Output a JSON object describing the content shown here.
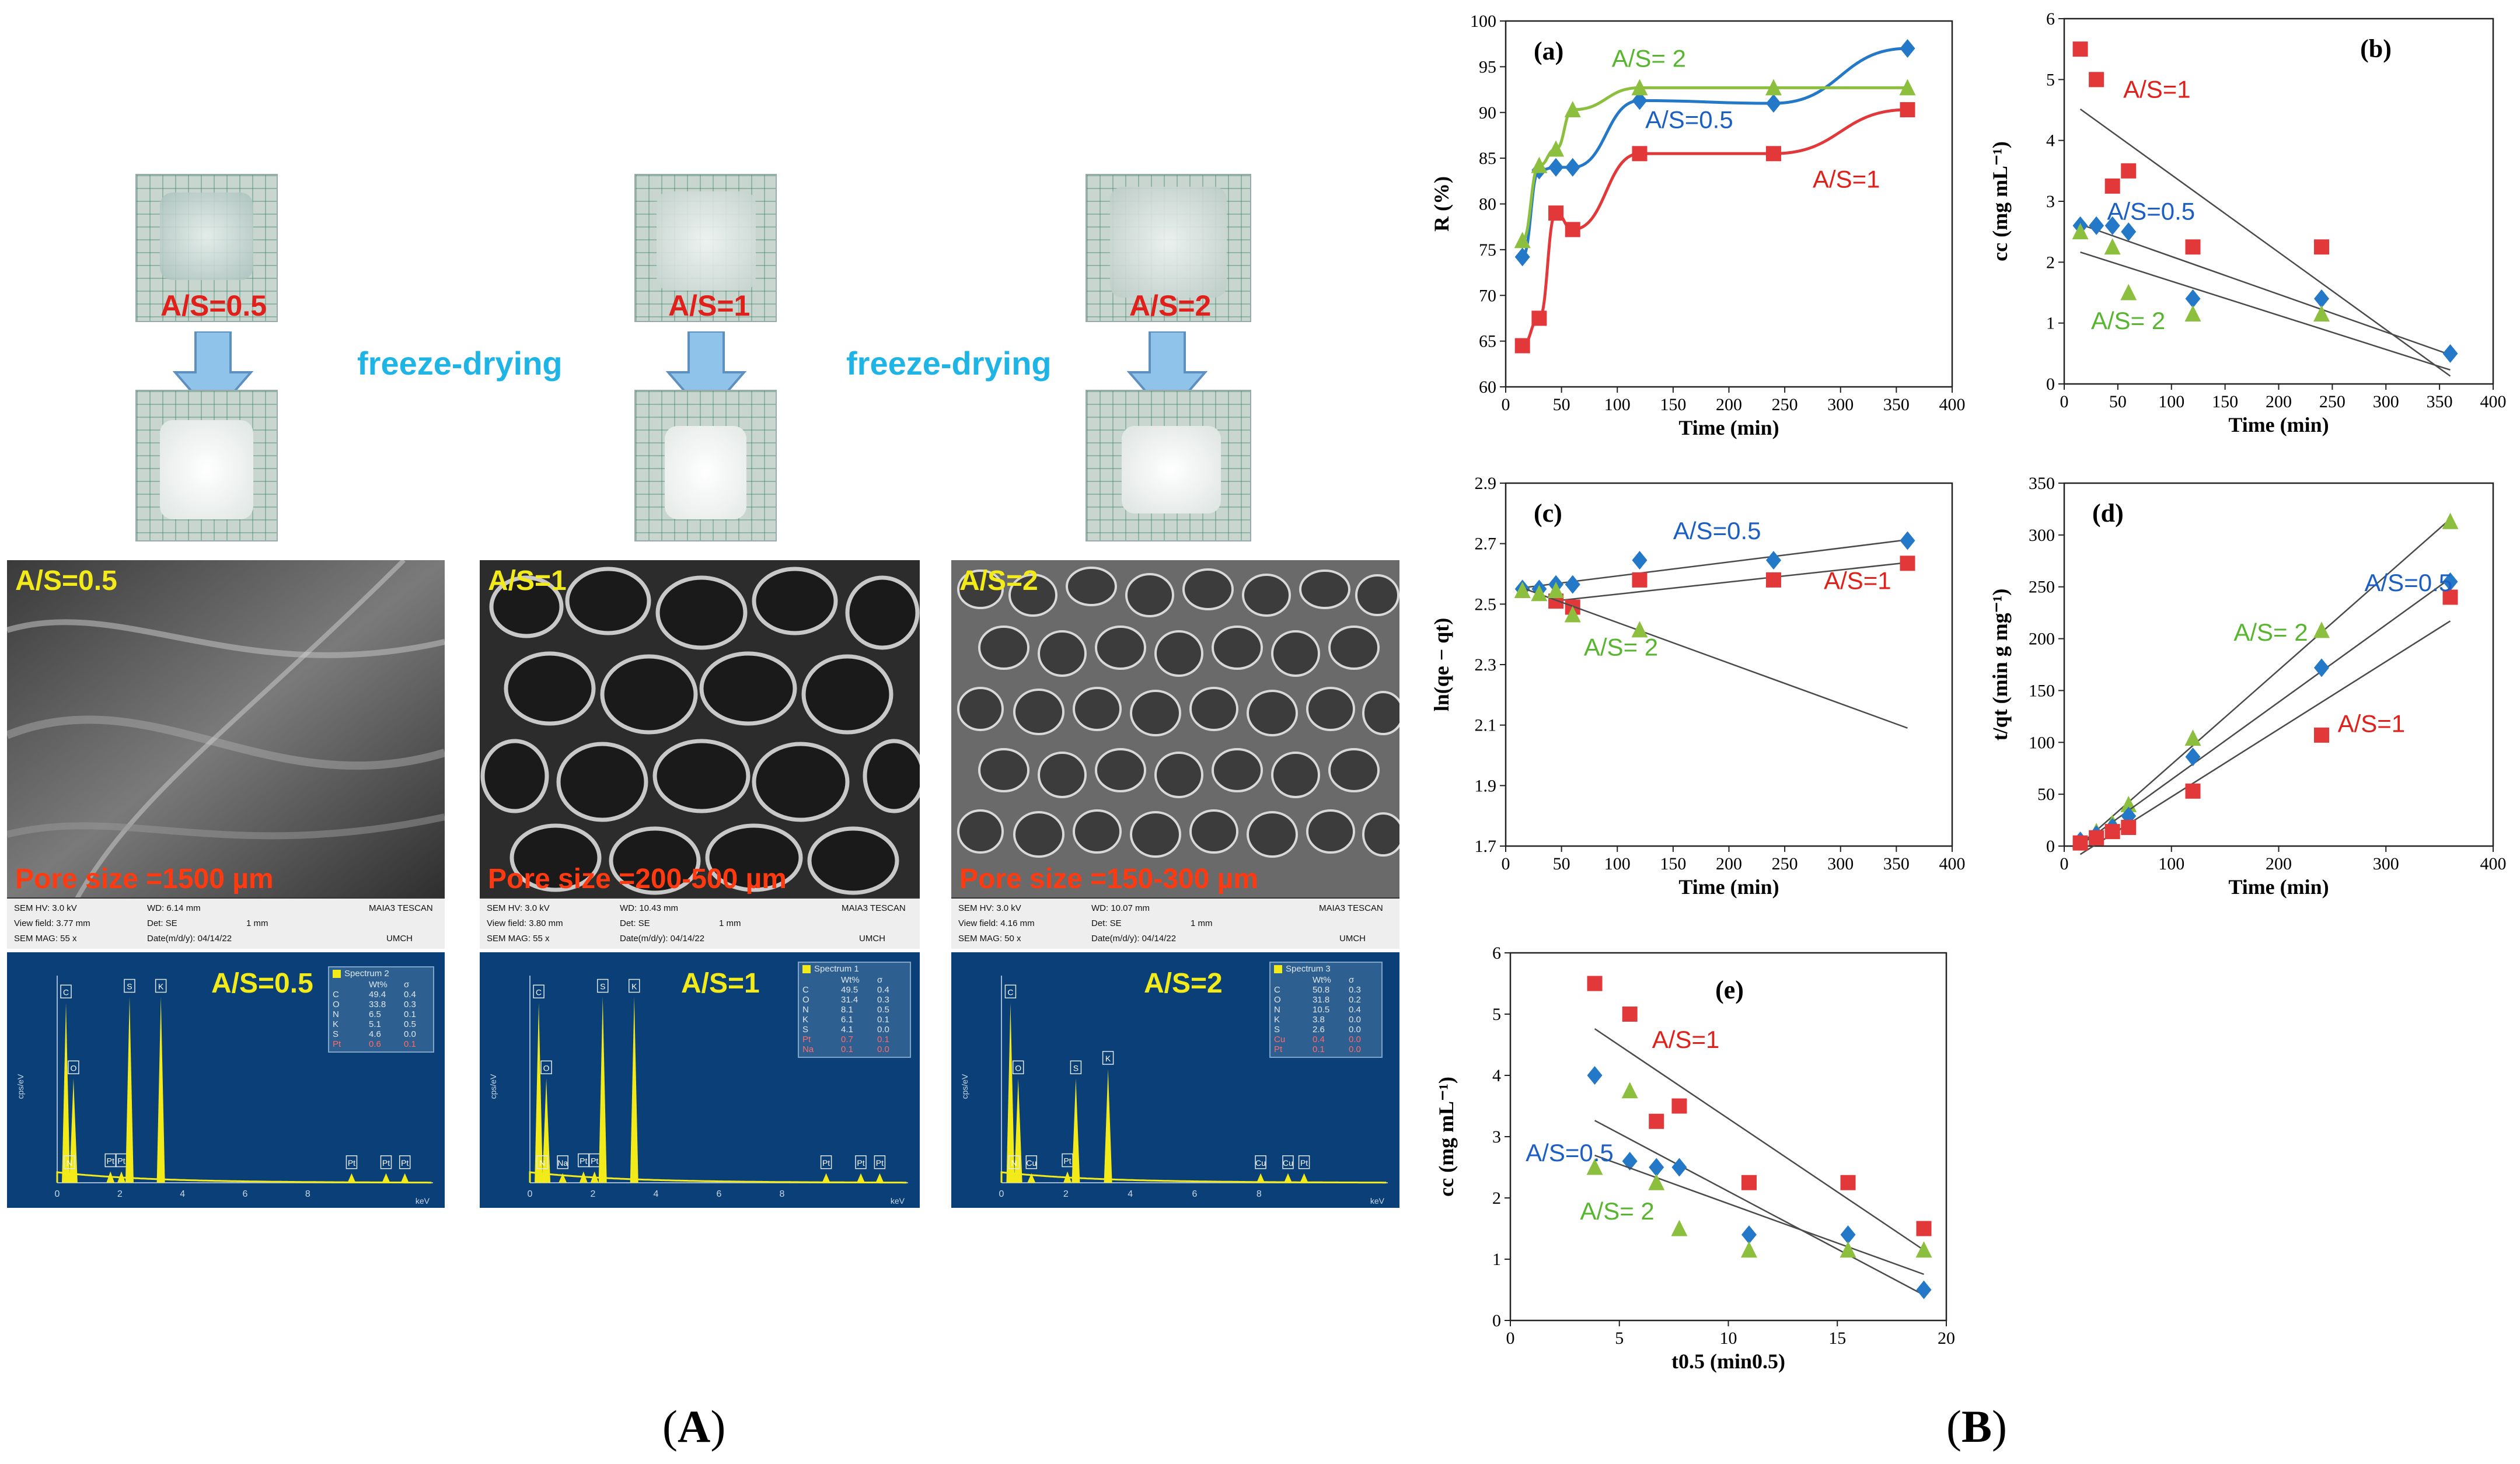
{
  "panel_A": {
    "caption_open": "(",
    "caption_letter": "A",
    "caption_close": ")",
    "freeze_label": "freeze-drying",
    "samples": [
      {
        "ratio": "A/S=0.5",
        "sem": {
          "label": "A/S=0.5",
          "pore": "Pore size =1500 µm",
          "info": {
            "hv": "SEM HV: 3.0 kV",
            "vf": "View field: 3.77 mm",
            "mag": "SEM MAG: 55 x",
            "wd": "WD: 6.14 mm",
            "det": "Det: SE",
            "date": "Date(m/d/y): 04/14/22",
            "scale": "1 mm",
            "brand": "MAIA3 TESCAN",
            "inst": "UMCH"
          }
        },
        "eds": {
          "label": "A/S=0.5",
          "spectrum": "Spectrum 2",
          "header": [
            "",
            "Wt%",
            "σ"
          ],
          "rows": [
            [
              "C",
              "49.4",
              "0.4"
            ],
            [
              "O",
              "33.8",
              "0.3"
            ],
            [
              "N",
              "6.5",
              "0.1"
            ],
            [
              "K",
              "5.1",
              "0.5"
            ],
            [
              "S",
              "4.6",
              "0.0"
            ],
            [
              "Pt",
              "0.6",
              "0.1"
            ]
          ],
          "peaks": [
            "C",
            "O",
            "N",
            "Pt",
            "Pt",
            "S",
            "K",
            "Pt",
            "Pt",
            "Pt"
          ],
          "yaxis": "cps/eV",
          "xaxis": "keV",
          "xticks": [
            "0",
            "2",
            "4",
            "6",
            "8"
          ]
        }
      },
      {
        "ratio": "A/S=1",
        "sem": {
          "label": "A/S=1",
          "pore": "Pore size =200-500 µm",
          "info": {
            "hv": "SEM HV: 3.0 kV",
            "vf": "View field: 3.80 mm",
            "mag": "SEM MAG: 55 x",
            "wd": "WD: 10.43 mm",
            "det": "Det: SE",
            "date": "Date(m/d/y): 04/14/22",
            "scale": "1 mm",
            "brand": "MAIA3 TESCAN",
            "inst": "UMCH"
          }
        },
        "eds": {
          "label": "A/S=1",
          "spectrum": "Spectrum 1",
          "header": [
            "",
            "Wt%",
            "σ"
          ],
          "rows": [
            [
              "C",
              "49.5",
              "0.4"
            ],
            [
              "O",
              "31.4",
              "0.3"
            ],
            [
              "N",
              "8.1",
              "0.5"
            ],
            [
              "K",
              "6.1",
              "0.1"
            ],
            [
              "S",
              "4.1",
              "0.0"
            ],
            [
              "Pt",
              "0.7",
              "0.1"
            ],
            [
              "Na",
              "0.1",
              "0.0"
            ]
          ],
          "peaks": [
            "C",
            "O",
            "N",
            "Na",
            "Pt",
            "Pt",
            "S",
            "K",
            "Pt",
            "Pt",
            "Pt"
          ],
          "yaxis": "cps/eV",
          "xaxis": "keV",
          "xticks": [
            "0",
            "2",
            "4",
            "6",
            "8"
          ]
        }
      },
      {
        "ratio": "A/S=2",
        "sem": {
          "label": "A/S=2",
          "pore": "Pore size =150-300 µm",
          "info": {
            "hv": "SEM HV: 3.0 kV",
            "vf": "View field: 4.16 mm",
            "mag": "SEM MAG: 50 x",
            "wd": "WD: 10.07 mm",
            "det": "Det: SE",
            "date": "Date(m/d/y): 04/14/22",
            "scale": "1 mm",
            "brand": "MAIA3 TESCAN",
            "inst": "UMCH"
          }
        },
        "eds": {
          "label": "A/S=2",
          "spectrum": "Spectrum 3",
          "header": [
            "",
            "Wt%",
            "σ"
          ],
          "rows": [
            [
              "C",
              "50.8",
              "0.3"
            ],
            [
              "O",
              "31.8",
              "0.2"
            ],
            [
              "N",
              "10.5",
              "0.4"
            ],
            [
              "K",
              "3.8",
              "0.0"
            ],
            [
              "S",
              "2.6",
              "0.0"
            ],
            [
              "Cu",
              "0.4",
              "0.0"
            ],
            [
              "Pt",
              "0.1",
              "0.0"
            ]
          ],
          "peaks": [
            "C",
            "O",
            "N",
            "Cu",
            "Pt",
            "S",
            "K",
            "Cu",
            "Cu",
            "Pt"
          ],
          "yaxis": "cps/eV",
          "xaxis": "keV",
          "xticks": [
            "0",
            "2",
            "4",
            "6",
            "8"
          ]
        }
      }
    ]
  },
  "panel_B": {
    "caption_open": "(",
    "caption_letter": "B",
    "caption_close": ")"
  },
  "colors": {
    "red": "#e2383a",
    "blue": "#2478c8",
    "green": "#8dbf3f",
    "line": "#4a4a4a",
    "redText": "#e0201a",
    "blueText": "#1c5fc4",
    "greenText": "#58b530"
  },
  "chart_data": [
    {
      "id": "a",
      "panel_label": "(a)",
      "type": "line",
      "xlabel": "Time (min)",
      "ylabel": "R (%)",
      "xlim": [
        0,
        400
      ],
      "ylim": [
        60,
        100
      ],
      "xticks": [
        0,
        50,
        100,
        150,
        200,
        250,
        300,
        350,
        400
      ],
      "yticks": [
        60,
        65,
        70,
        75,
        80,
        85,
        90,
        95,
        100
      ],
      "fit": "smooth",
      "series": [
        {
          "name": "A/S=1",
          "color": "red",
          "marker": "square",
          "x": [
            15,
            30,
            45,
            60,
            120,
            240,
            360
          ],
          "y": [
            64.5,
            67.5,
            79,
            77.2,
            85.5,
            85.5,
            90.3
          ]
        },
        {
          "name": "A/S=0.5",
          "color": "blue",
          "marker": "diamond",
          "x": [
            15,
            30,
            45,
            60,
            120,
            240,
            360
          ],
          "y": [
            74.2,
            83.7,
            84,
            84,
            91.3,
            91,
            97
          ]
        },
        {
          "name": "A/S= 2",
          "color": "green",
          "marker": "triangle",
          "x": [
            15,
            30,
            45,
            60,
            120,
            240,
            360
          ],
          "y": [
            76,
            84.2,
            86,
            90.3,
            92.7,
            92.7,
            92.7
          ]
        }
      ],
      "annotations": [
        {
          "text": "A/S= 2",
          "color": "green",
          "x": 95,
          "y": 95
        },
        {
          "text": "A/S=0.5",
          "color": "blue",
          "x": 125,
          "y": 88.3
        },
        {
          "text": "A/S=1",
          "color": "red",
          "x": 275,
          "y": 81.8
        }
      ]
    },
    {
      "id": "b",
      "panel_label": "(b)",
      "type": "scatter",
      "xlabel": "Time (min)",
      "ylabel": "cc (mg mL⁻¹)",
      "xlim": [
        0,
        400
      ],
      "ylim": [
        0,
        6
      ],
      "xticks": [
        0,
        50,
        100,
        150,
        200,
        250,
        300,
        350,
        400
      ],
      "yticks": [
        0,
        1,
        2,
        3,
        4,
        5,
        6
      ],
      "fit": "linear",
      "series": [
        {
          "name": "A/S=1",
          "color": "red",
          "marker": "square",
          "x": [
            15,
            30,
            45,
            60,
            120,
            240
          ],
          "y": [
            5.5,
            5.0,
            3.25,
            3.5,
            2.25,
            2.25
          ]
        },
        {
          "name": "A/S=0.5",
          "color": "blue",
          "marker": "diamond",
          "x": [
            15,
            30,
            45,
            60,
            120,
            240,
            360
          ],
          "y": [
            2.6,
            2.6,
            2.6,
            2.5,
            1.4,
            1.4,
            0.5
          ]
        },
        {
          "name": "A/S= 2",
          "color": "green",
          "marker": "triangle",
          "x": [
            15,
            45,
            60,
            120,
            240
          ],
          "y": [
            2.5,
            2.25,
            1.5,
            1.15,
            1.15
          ]
        }
      ],
      "annotations": [
        {
          "text": "A/S=1",
          "color": "red",
          "x": 55,
          "y": 4.7
        },
        {
          "text": "A/S=0.5",
          "color": "blue",
          "x": 40,
          "y": 2.7
        },
        {
          "text": "A/S= 2",
          "color": "green",
          "x": 25,
          "y": 0.9
        }
      ]
    },
    {
      "id": "c",
      "panel_label": "(c)",
      "type": "scatter",
      "xlabel": "Time (min)",
      "ylabel": "ln(qe − qt)",
      "xlim": [
        0,
        400
      ],
      "ylim": [
        1.7,
        2.9
      ],
      "xticks": [
        0,
        50,
        100,
        150,
        200,
        250,
        300,
        350,
        400
      ],
      "yticks": [
        1.7,
        1.9,
        2.1,
        2.3,
        2.5,
        2.7,
        2.9
      ],
      "fit": "linear",
      "series": [
        {
          "name": "A/S=0.5",
          "color": "blue",
          "marker": "diamond",
          "x": [
            15,
            30,
            45,
            60,
            120,
            240,
            360
          ],
          "y": [
            2.55,
            2.55,
            2.565,
            2.565,
            2.645,
            2.645,
            2.71
          ]
        },
        {
          "name": "A/S=1",
          "color": "red",
          "marker": "square",
          "x": [
            45,
            60,
            120,
            240,
            360
          ],
          "y": [
            2.51,
            2.49,
            2.58,
            2.58,
            2.635
          ]
        },
        {
          "name": "A/S= 2",
          "color": "green",
          "marker": "triangle",
          "x": [
            15,
            30,
            45,
            60,
            120
          ],
          "y": [
            2.545,
            2.535,
            2.545,
            2.465,
            2.415
          ]
        }
      ],
      "annotations": [
        {
          "text": "A/S=0.5",
          "color": "blue",
          "x": 150,
          "y": 2.715
        },
        {
          "text": "A/S=1",
          "color": "red",
          "x": 285,
          "y": 2.55
        },
        {
          "text": "A/S= 2",
          "color": "green",
          "x": 70,
          "y": 2.33
        }
      ]
    },
    {
      "id": "d",
      "panel_label": "(d)",
      "type": "scatter",
      "xlabel": "Time (min)",
      "ylabel": "t/qt (min g mg⁻¹)",
      "xlim": [
        0,
        400
      ],
      "ylim": [
        0,
        350
      ],
      "xticks": [
        0,
        100,
        200,
        300,
        400
      ],
      "yticks": [
        0,
        50,
        100,
        150,
        200,
        250,
        300,
        350
      ],
      "fit": "linear",
      "series": [
        {
          "name": "A/S= 2",
          "color": "green",
          "marker": "triangle",
          "x": [
            15,
            30,
            45,
            60,
            120,
            240,
            360
          ],
          "y": [
            5,
            14,
            22,
            40,
            104,
            208,
            313
          ]
        },
        {
          "name": "A/S=0.5",
          "color": "blue",
          "marker": "diamond",
          "x": [
            15,
            30,
            45,
            60,
            120,
            240,
            360
          ],
          "y": [
            5,
            11,
            18,
            29,
            86,
            172,
            255
          ]
        },
        {
          "name": "A/S=1",
          "color": "red",
          "marker": "square",
          "x": [
            15,
            30,
            45,
            60,
            120,
            240,
            360
          ],
          "y": [
            3,
            8,
            14,
            18,
            53,
            107,
            240
          ]
        }
      ],
      "annotations": [
        {
          "text": "A/S= 2",
          "color": "green",
          "x": 158,
          "y": 198
        },
        {
          "text": "A/S=0.5",
          "color": "blue",
          "x": 280,
          "y": 246
        },
        {
          "text": "A/S=1",
          "color": "red",
          "x": 255,
          "y": 110
        }
      ]
    },
    {
      "id": "e",
      "panel_label": "(e)",
      "type": "scatter",
      "xlabel": "t0.5 (min0.5)",
      "ylabel": "cc (mg mL⁻¹)",
      "xlim": [
        0,
        20
      ],
      "ylim": [
        0,
        6
      ],
      "xticks": [
        0,
        5,
        10,
        15,
        20
      ],
      "yticks": [
        0,
        1,
        2,
        3,
        4,
        5,
        6
      ],
      "fit": "linear",
      "series": [
        {
          "name": "A/S=1",
          "color": "red",
          "marker": "square",
          "x": [
            3.87,
            5.48,
            6.7,
            7.75,
            10.95,
            15.49,
            18.97
          ],
          "y": [
            5.5,
            5.0,
            3.25,
            3.5,
            2.25,
            2.25,
            1.5
          ]
        },
        {
          "name": "A/S=0.5",
          "color": "blue",
          "marker": "diamond",
          "x": [
            3.87,
            5.48,
            6.7,
            7.75,
            10.95,
            15.49,
            18.97
          ],
          "y": [
            4.0,
            2.6,
            2.5,
            2.5,
            1.4,
            1.4,
            0.5
          ]
        },
        {
          "name": "A/S= 2",
          "color": "green",
          "marker": "triangle",
          "x": [
            3.87,
            5.48,
            6.7,
            7.75,
            10.95,
            15.49,
            18.97
          ],
          "y": [
            2.5,
            3.75,
            2.25,
            1.5,
            1.15,
            1.15,
            1.15
          ]
        }
      ],
      "annotations": [
        {
          "text": "A/S=1",
          "color": "red",
          "x": 6.5,
          "y": 4.45
        },
        {
          "text": "A/S=0.5",
          "color": "blue",
          "x": 0.7,
          "y": 2.6
        },
        {
          "text": "A/S= 2",
          "color": "green",
          "x": 3.2,
          "y": 1.65
        }
      ]
    }
  ]
}
